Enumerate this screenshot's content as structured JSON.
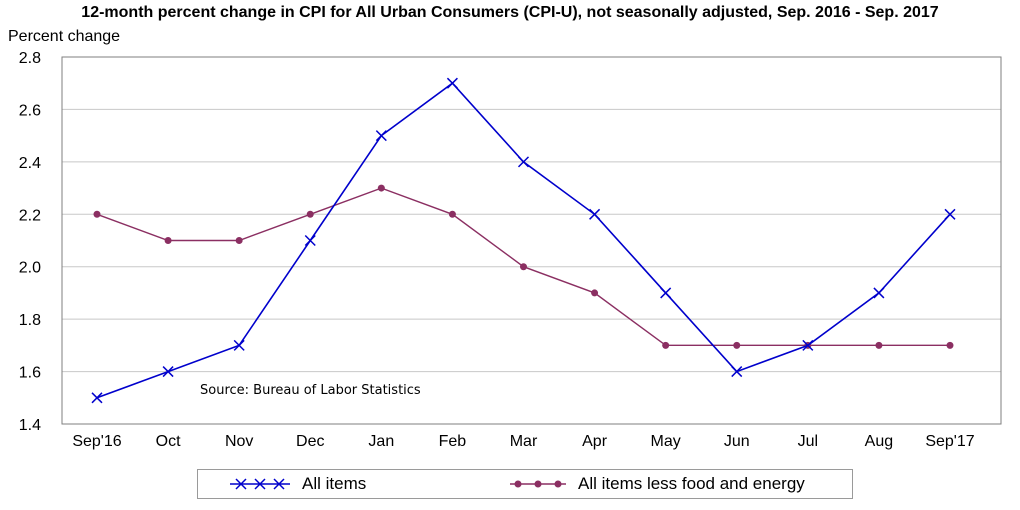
{
  "chart_data": {
    "type": "line",
    "title": "12-month percent change in CPI for All Urban Consumers (CPI-U), not seasonally adjusted, Sep. 2016 - Sep. 2017",
    "ylabel": "Percent change",
    "xlabel": "",
    "categories": [
      "Sep'16",
      "Oct",
      "Nov",
      "Dec",
      "Jan",
      "Feb",
      "Mar",
      "Apr",
      "May",
      "Jun",
      "Jul",
      "Aug",
      "Sep'17"
    ],
    "ylim": [
      1.4,
      2.8
    ],
    "yticks": [
      "1.4",
      "1.6",
      "1.8",
      "2.0",
      "2.2",
      "2.4",
      "2.6",
      "2.8"
    ],
    "grid": true,
    "legend_position": "bottom",
    "annotation": "Source: Bureau of Labor Statistics",
    "series": [
      {
        "name": "All items",
        "color": "#0000cc",
        "marker": "x",
        "values": [
          1.5,
          1.6,
          1.7,
          2.1,
          2.5,
          2.7,
          2.4,
          2.2,
          1.9,
          1.6,
          1.7,
          1.9,
          2.2
        ]
      },
      {
        "name": "All items less food and energy",
        "color": "#8b2f62",
        "marker": "circle",
        "values": [
          2.2,
          2.1,
          2.1,
          2.2,
          2.3,
          2.2,
          2.0,
          1.9,
          1.7,
          1.7,
          1.7,
          1.7,
          1.7
        ]
      }
    ]
  }
}
